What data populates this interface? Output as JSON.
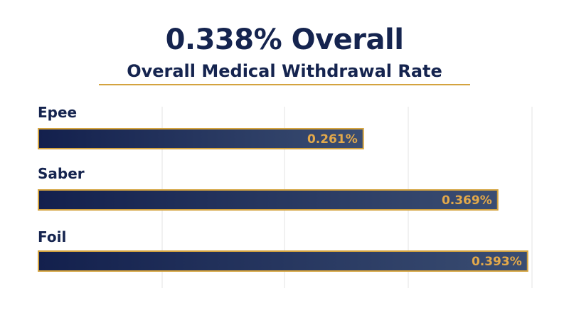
{
  "header": {
    "title": "0.338% Overall",
    "subtitle": "Overall Medical Withdrawal Rate"
  },
  "colors": {
    "title": "#15244f",
    "bar_dark": "#13204d",
    "bar_light": "#3a4d72",
    "bar_border": "#d4a33f",
    "value_label": "#e3a94a",
    "gridline": "#e3e3e3"
  },
  "chart_data": {
    "type": "bar",
    "orientation": "horizontal",
    "categories": [
      "Epee",
      "Saber",
      "Foil"
    ],
    "values": [
      0.261,
      0.369,
      0.393
    ],
    "value_labels": [
      "0.261%",
      "0.369%",
      "0.393%"
    ],
    "title": "0.338% Overall",
    "subtitle": "Overall Medical Withdrawal Rate",
    "xlim": [
      0,
      0.4
    ],
    "grid": true,
    "legend": "none"
  }
}
